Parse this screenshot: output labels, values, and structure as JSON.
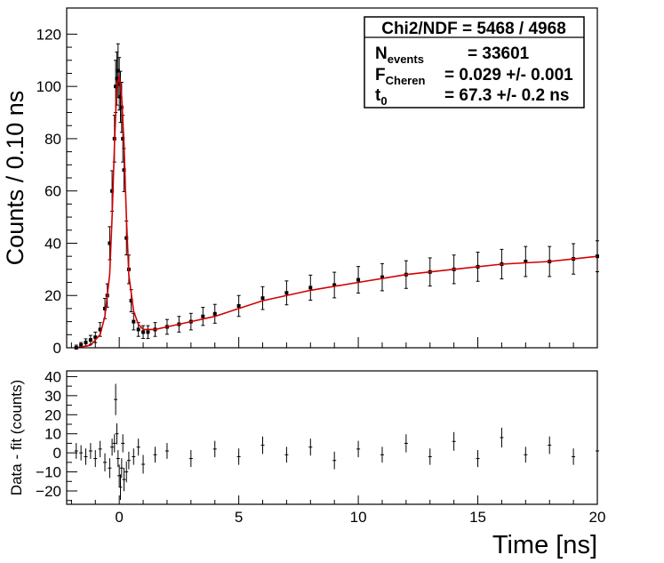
{
  "chart_data": [
    {
      "type": "scatter",
      "panel": "main",
      "ylabel": "Counts / 0.10 ns",
      "xlabel": "",
      "xlim": [
        -2.2,
        20
      ],
      "ylim": [
        0,
        130
      ],
      "x_ticks": [
        0,
        5,
        10,
        15,
        20
      ],
      "y_ticks": [
        0,
        20,
        40,
        60,
        80,
        100,
        120
      ],
      "y_tick_labels": [
        "0",
        "20",
        "40",
        "60",
        "80",
        "100",
        "120"
      ],
      "grid": false,
      "legend_box": {
        "placement": "top-right",
        "chi2_label": "Chi2/NDF = 5468 / 4968",
        "rows": [
          {
            "main": "N",
            "sub": "events",
            "value": "= 33601"
          },
          {
            "main": "F",
            "sub": "Cheren",
            "value": "= 0.029 +/- 0.001"
          },
          {
            "main": "t",
            "sub": "0",
            "value": "= 67.3 +/- 0.2 ns"
          }
        ]
      },
      "series": [
        {
          "name": "data",
          "marker": "square",
          "color": "#000000",
          "x": [
            -1.8,
            -1.6,
            -1.4,
            -1.2,
            -1.0,
            -0.8,
            -0.6,
            -0.5,
            -0.4,
            -0.3,
            -0.2,
            -0.15,
            -0.1,
            -0.05,
            0.0,
            0.05,
            0.1,
            0.15,
            0.2,
            0.3,
            0.4,
            0.5,
            0.6,
            0.8,
            1.0,
            1.2,
            1.5,
            2.0,
            2.5,
            3.0,
            3.5,
            4.0,
            5.0,
            6.0,
            7.0,
            8.0,
            9.0,
            10.0,
            11.0,
            12.0,
            13.0,
            14.0,
            15.0,
            16.0,
            17.0,
            18.0,
            19.0,
            20.0
          ],
          "y": [
            0,
            1,
            2,
            3,
            4,
            7,
            15,
            20,
            40,
            60,
            80,
            100,
            103,
            106,
            101,
            96,
            92,
            80,
            68,
            42,
            30,
            18,
            10,
            7,
            6,
            6,
            7,
            8,
            9,
            10,
            12,
            13,
            16,
            19,
            21,
            23,
            24,
            26,
            27,
            28,
            29,
            30,
            31,
            32,
            33,
            33,
            34,
            35
          ],
          "y_err_approx": "sqrt(N)"
        },
        {
          "name": "fit",
          "style": "red step/line",
          "color": "#d40000",
          "x": [
            -1.8,
            -1.2,
            -0.8,
            -0.6,
            -0.4,
            -0.3,
            -0.2,
            -0.1,
            0.0,
            0.1,
            0.2,
            0.3,
            0.4,
            0.6,
            0.8,
            1.0,
            1.5,
            2.0,
            3.0,
            4.0,
            5.0,
            6.0,
            8.0,
            10.0,
            12.0,
            14.0,
            16.0,
            18.0,
            20.0
          ],
          "y": [
            0,
            1,
            5,
            12,
            28,
            50,
            78,
            100,
            104,
            96,
            78,
            50,
            28,
            14,
            9,
            7,
            7,
            8,
            10,
            12,
            15,
            18,
            22,
            25,
            28,
            30,
            32,
            33,
            35
          ]
        }
      ]
    },
    {
      "type": "scatter",
      "panel": "residuals",
      "ylabel": "Data - fit (counts)",
      "xlabel": "Time [ns]",
      "xlim": [
        -2.2,
        20
      ],
      "ylim": [
        -27,
        43
      ],
      "x_ticks": [
        0,
        5,
        10,
        15,
        20
      ],
      "x_tick_labels": [
        "0",
        "5",
        "10",
        "15",
        "20"
      ],
      "y_ticks": [
        -20,
        -10,
        0,
        10,
        20,
        30,
        40
      ],
      "y_tick_labels": [
        "−20",
        "−10",
        "0",
        "10",
        "20",
        "30",
        "40"
      ],
      "grid": false,
      "series": [
        {
          "name": "residuals",
          "color": "#000000",
          "x": [
            -1.8,
            -1.6,
            -1.4,
            -1.2,
            -1.0,
            -0.8,
            -0.6,
            -0.4,
            -0.3,
            -0.2,
            -0.15,
            -0.1,
            -0.05,
            0.0,
            0.05,
            0.1,
            0.15,
            0.2,
            0.3,
            0.4,
            0.6,
            0.8,
            1.0,
            1.5,
            2.0,
            3.0,
            4.0,
            5.0,
            6.0,
            7.0,
            8.0,
            9.0,
            10.0,
            11.0,
            12.0,
            13.0,
            14.0,
            15.0,
            16.0,
            17.0,
            18.0,
            19.0,
            20.0
          ],
          "y": [
            1,
            0,
            -2,
            1,
            -3,
            2,
            -5,
            -8,
            3,
            5,
            28,
            10,
            -3,
            -12,
            -18,
            -8,
            5,
            -14,
            -10,
            -4,
            -2,
            3,
            -6,
            -1,
            1,
            -3,
            2,
            -2,
            4,
            -1,
            3,
            -4,
            2,
            -1,
            5,
            -2,
            6,
            -3,
            8,
            -1,
            4,
            -2,
            1
          ]
        }
      ]
    }
  ]
}
